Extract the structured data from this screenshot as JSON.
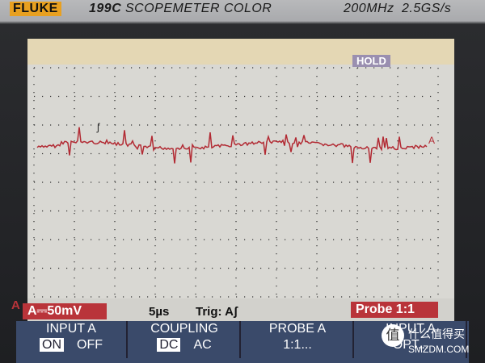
{
  "header": {
    "brand": "FLUKE",
    "model": "199C",
    "product": "SCOPEMETER COLOR",
    "bandwidth": "200MHz",
    "sample_rate": "2.5GS/s"
  },
  "screen": {
    "hold": "HOLD",
    "trigger_mark": "ʃ",
    "trace_label": "A",
    "channel_label": "A"
  },
  "status": {
    "range": "A⎓50mV",
    "timebase": "5µs",
    "trigger": "Trig: Aʃ",
    "probe": "Probe 1:1"
  },
  "softkeys": [
    {
      "label": "INPUT A",
      "options": [
        "ON",
        "OFF"
      ]
    },
    {
      "label": "COUPLING",
      "options": [
        "DC",
        "AC"
      ]
    },
    {
      "label": "PROBE A",
      "options": [
        "1:1..."
      ]
    },
    {
      "label": "INPUT A",
      "options": [
        "OPT..."
      ]
    }
  ],
  "watermark": {
    "icon": "值",
    "text": "什么值得买",
    "url": "SMZDM.COM"
  }
}
